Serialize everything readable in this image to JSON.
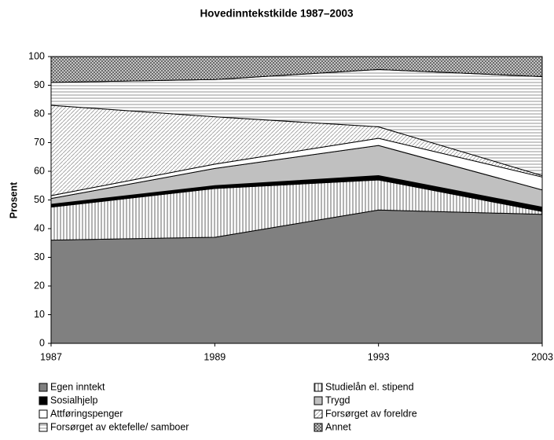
{
  "chart_data": {
    "type": "stacked_area",
    "title": "Hovedinntekstkilde 1987–2003",
    "ylabel": "Prosent",
    "categories": [
      "1987",
      "1989",
      "1993",
      "2003"
    ],
    "ylim": [
      0,
      100
    ],
    "yticks": [
      0,
      10,
      20,
      30,
      40,
      50,
      60,
      70,
      80,
      90,
      100
    ],
    "series": [
      {
        "name": "Egen inntekt",
        "color": "#808080",
        "values": [
          36,
          37,
          46.5,
          45
        ]
      },
      {
        "name": "Studielån el. stipend",
        "color": "#d9d9d9",
        "values": [
          11.5,
          17,
          10.5,
          1
        ]
      },
      {
        "name": "Sosialhjelp",
        "color": "#000000",
        "values": [
          1,
          1,
          1.5,
          1.5
        ]
      },
      {
        "name": "Trygd",
        "color": "#c0c0c0",
        "values": [
          2,
          6,
          10.5,
          6
        ]
      },
      {
        "name": "Attføringspenger",
        "color": "#ffffff",
        "values": [
          1,
          1.5,
          2.5,
          4.5
        ]
      },
      {
        "name": "Forsørget av foreldre",
        "color": "#ececec",
        "values": [
          31.5,
          16.5,
          4,
          0.5
        ]
      },
      {
        "name": "Forsørget av ektefelle/ samboer",
        "color": "#f4f4f4",
        "values": [
          8,
          13,
          20,
          34.5
        ]
      },
      {
        "name": "Annet",
        "color": "#b0b0b0",
        "values": [
          9,
          8,
          4.5,
          7
        ]
      }
    ]
  }
}
